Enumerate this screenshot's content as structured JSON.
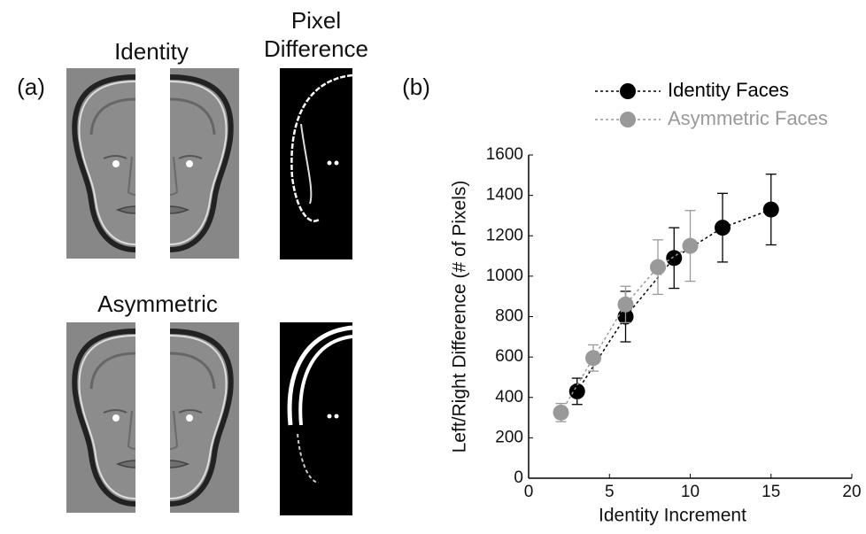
{
  "panel_a": {
    "label": "(a)",
    "identity_title": "Identity",
    "difference_title": [
      "Pixel",
      "Difference"
    ],
    "asymmetric_title": "Asymmetric"
  },
  "chart_data": {
    "type": "line",
    "panel_label": "(b)",
    "x_label": "Identity Increment",
    "y_label": "Left/Right Difference (# of Pixels)",
    "xlim": [
      0,
      20
    ],
    "xticks": [
      0,
      5,
      10,
      15,
      20
    ],
    "ylim": [
      0,
      1600
    ],
    "yticks": [
      0,
      200,
      400,
      600,
      800,
      1000,
      1200,
      1400,
      1600
    ],
    "legend": "top-right",
    "series": [
      {
        "name": "Identity Faces",
        "color": "#000000",
        "x": [
          3,
          6,
          9,
          12,
          15
        ],
        "values": [
          430,
          800,
          1090,
          1240,
          1330
        ],
        "errors": [
          65,
          125,
          150,
          170,
          175
        ]
      },
      {
        "name": "Asymmetric Faces",
        "color": "#999999",
        "x": [
          2,
          4,
          6,
          8,
          10
        ],
        "values": [
          325,
          595,
          860,
          1045,
          1150
        ],
        "errors": [
          45,
          65,
          90,
          135,
          175
        ]
      }
    ]
  }
}
